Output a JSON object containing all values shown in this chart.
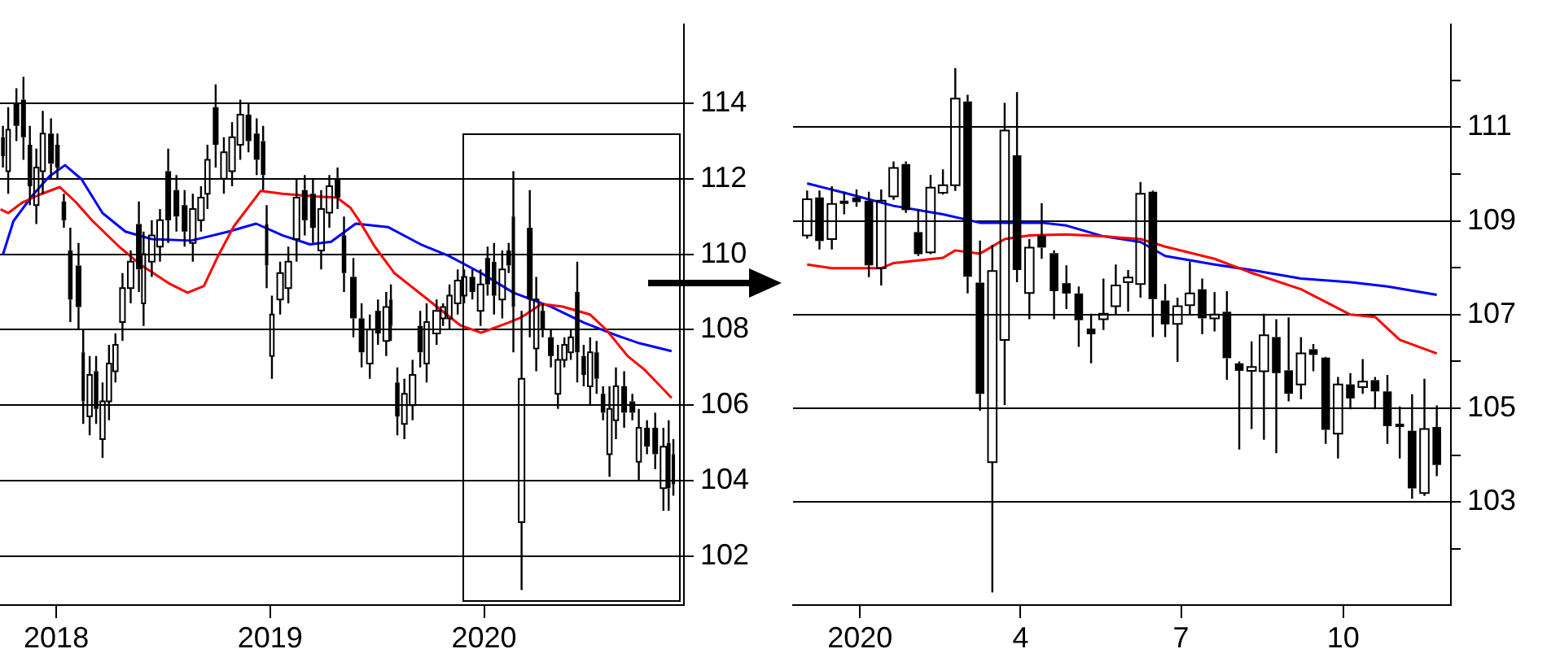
{
  "chart_data": [
    {
      "type": "candlestick",
      "color": "#000000",
      "grid": "y",
      "xlim": [
        "2017-09-27",
        "2020-12-07"
      ],
      "xticks": [
        {
          "value": "2018-01-01",
          "label": "2018"
        },
        {
          "value": "2019-01-01",
          "label": "2019"
        },
        {
          "value": "2020-01-01",
          "label": "2020"
        }
      ],
      "ylim": [
        100.7,
        116.1
      ],
      "yticks": [
        102,
        104,
        106,
        108,
        110,
        112,
        114
      ],
      "x": [
        "2017-10-02",
        "2017-10-11",
        "2017-10-25",
        "2017-11-06",
        "2017-11-17",
        "2017-11-28",
        "2017-12-09",
        "2017-12-23",
        "2018-01-03",
        "2018-01-14",
        "2018-01-25",
        "2018-02-08",
        "2018-02-16",
        "2018-02-27",
        "2018-03-10",
        "2018-03-21",
        "2018-04-01",
        "2018-04-12",
        "2018-04-24",
        "2018-05-08",
        "2018-05-22",
        "2018-05-30",
        "2018-06-13",
        "2018-06-27",
        "2018-07-11",
        "2018-07-25",
        "2018-08-08",
        "2018-08-22",
        "2018-09-05",
        "2018-09-16",
        "2018-09-30",
        "2018-10-14",
        "2018-10-28",
        "2018-11-11",
        "2018-11-25",
        "2018-12-09",
        "2018-12-20",
        "2018-12-26",
        "2019-01-04",
        "2019-01-18",
        "2019-02-01",
        "2019-02-15",
        "2019-03-01",
        "2019-03-15",
        "2019-03-29",
        "2019-04-12",
        "2019-04-26",
        "2019-05-07",
        "2019-05-23",
        "2019-06-06",
        "2019-06-20",
        "2019-07-04",
        "2019-07-18",
        "2019-07-26",
        "2019-08-06",
        "2019-08-18",
        "2019-09-01",
        "2019-09-14",
        "2019-09-25",
        "2019-10-12",
        "2019-10-23",
        "2019-11-03",
        "2019-11-17",
        "2019-11-28",
        "2019-12-12",
        "2019-12-26",
        "2020-01-07",
        "2020-01-18",
        "2020-02-01",
        "2020-02-12",
        "2020-02-20",
        "2020-03-05",
        "2020-03-19",
        "2020-03-30",
        "2020-04-10",
        "2020-04-24",
        "2020-05-06",
        "2020-05-17",
        "2020-05-28",
        "2020-06-08",
        "2020-06-19",
        "2020-06-30",
        "2020-07-11",
        "2020-07-22",
        "2020-08-02",
        "2020-08-13",
        "2020-08-27",
        "2020-09-10",
        "2020-09-21",
        "2020-10-05",
        "2020-10-19",
        "2020-11-02",
        "2020-11-11",
        "2020-11-19"
      ],
      "ohlc": [
        [
          113.1,
          113.4,
          112.3,
          112.6
        ],
        [
          112.2,
          113.9,
          111.6,
          113.3
        ],
        [
          114.0,
          114.4,
          113.0,
          113.4
        ],
        [
          114.1,
          114.7,
          112.5,
          113.1
        ],
        [
          112.9,
          113.4,
          111.3,
          111.8
        ],
        [
          111.3,
          112.8,
          110.8,
          112.3
        ],
        [
          112.2,
          113.8,
          111.6,
          113.2
        ],
        [
          113.2,
          113.6,
          112.0,
          112.4
        ],
        [
          112.9,
          113.2,
          112.0,
          112.3
        ],
        [
          111.4,
          111.6,
          110.7,
          110.9
        ],
        [
          110.1,
          110.7,
          108.2,
          108.8
        ],
        [
          109.7,
          110.3,
          108.0,
          108.6
        ],
        [
          107.4,
          108.0,
          105.5,
          106.1
        ],
        [
          105.7,
          107.3,
          105.2,
          106.8
        ],
        [
          106.9,
          107.3,
          105.5,
          105.9
        ],
        [
          105.1,
          106.6,
          104.6,
          106.1
        ],
        [
          106.1,
          107.6,
          105.6,
          107.1
        ],
        [
          106.9,
          107.9,
          106.6,
          107.6
        ],
        [
          108.2,
          109.5,
          107.7,
          109.1
        ],
        [
          109.1,
          110.1,
          108.7,
          109.8
        ],
        [
          110.8,
          111.4,
          109.0,
          109.6
        ],
        [
          108.7,
          110.6,
          108.1,
          110.0
        ],
        [
          109.8,
          110.9,
          109.4,
          110.5
        ],
        [
          110.2,
          111.2,
          109.8,
          110.9
        ],
        [
          112.2,
          112.8,
          110.3,
          110.9
        ],
        [
          111.7,
          112.1,
          110.6,
          111.0
        ],
        [
          111.3,
          111.7,
          110.2,
          110.6
        ],
        [
          110.3,
          111.6,
          109.8,
          111.2
        ],
        [
          110.9,
          111.8,
          110.6,
          111.5
        ],
        [
          111.6,
          112.9,
          111.2,
          112.5
        ],
        [
          113.9,
          114.5,
          112.3,
          112.9
        ],
        [
          112.0,
          113.1,
          111.6,
          112.7
        ],
        [
          112.2,
          113.5,
          111.8,
          113.1
        ],
        [
          112.9,
          114.1,
          112.5,
          113.7
        ],
        [
          113.7,
          114.0,
          112.7,
          113.0
        ],
        [
          113.2,
          113.6,
          112.1,
          112.5
        ],
        [
          113.0,
          113.4,
          111.7,
          112.1
        ],
        [
          110.8,
          111.3,
          109.1,
          109.7
        ],
        [
          107.3,
          108.9,
          106.7,
          108.4
        ],
        [
          108.8,
          109.8,
          108.4,
          109.5
        ],
        [
          109.1,
          110.2,
          108.7,
          109.8
        ],
        [
          110.4,
          112.0,
          109.8,
          111.5
        ],
        [
          111.7,
          112.1,
          110.5,
          110.9
        ],
        [
          111.6,
          112.0,
          110.3,
          110.7
        ],
        [
          110.1,
          111.7,
          109.6,
          111.2
        ],
        [
          111.1,
          112.1,
          110.7,
          111.8
        ],
        [
          112.0,
          112.3,
          111.2,
          111.5
        ],
        [
          110.5,
          111.0,
          109.0,
          109.5
        ],
        [
          109.4,
          109.9,
          107.8,
          108.3
        ],
        [
          108.3,
          108.7,
          107.0,
          107.4
        ],
        [
          107.1,
          108.4,
          106.7,
          108.0
        ],
        [
          108.5,
          108.8,
          107.6,
          107.9
        ],
        [
          107.7,
          109.0,
          107.3,
          108.6
        ],
        [
          108.8,
          109.2,
          107.7,
          108.1
        ],
        [
          106.6,
          107.0,
          105.2,
          105.7
        ],
        [
          105.5,
          106.7,
          105.1,
          106.3
        ],
        [
          106.0,
          107.2,
          105.6,
          106.8
        ],
        [
          108.1,
          108.5,
          107.0,
          107.4
        ],
        [
          107.1,
          108.7,
          106.6,
          108.2
        ],
        [
          107.9,
          108.8,
          107.6,
          108.5
        ],
        [
          108.3,
          108.7,
          108.1,
          108.6
        ],
        [
          108.3,
          109.2,
          108.0,
          108.9
        ],
        [
          108.7,
          109.6,
          108.4,
          109.3
        ],
        [
          108.9,
          109.6,
          108.7,
          109.4
        ],
        [
          109.4,
          109.6,
          108.8,
          109.0
        ],
        [
          108.5,
          109.6,
          108.1,
          109.2
        ],
        [
          109.9,
          110.2,
          108.9,
          109.2
        ],
        [
          109.8,
          110.3,
          108.4,
          108.9
        ],
        [
          108.8,
          110.1,
          108.3,
          109.6
        ],
        [
          110.1,
          110.3,
          109.5,
          109.7
        ],
        [
          111.0,
          112.2,
          107.4,
          108.6
        ],
        [
          102.9,
          108.5,
          101.1,
          106.7
        ],
        [
          110.7,
          111.7,
          107.8,
          108.8
        ],
        [
          107.5,
          109.4,
          106.9,
          108.8
        ],
        [
          108.5,
          108.7,
          107.8,
          108.0
        ],
        [
          107.8,
          108.0,
          107.0,
          107.3
        ],
        [
          106.3,
          107.6,
          105.9,
          107.2
        ],
        [
          107.2,
          107.8,
          107.0,
          107.6
        ],
        [
          107.4,
          108.0,
          107.2,
          107.8
        ],
        [
          109.0,
          109.8,
          106.6,
          107.4
        ],
        [
          107.3,
          107.6,
          106.5,
          106.8
        ],
        [
          106.5,
          107.8,
          106.0,
          107.4
        ],
        [
          107.4,
          107.7,
          106.3,
          106.7
        ],
        [
          106.3,
          106.5,
          105.6,
          105.8
        ],
        [
          104.7,
          106.5,
          104.1,
          105.9
        ],
        [
          105.6,
          107.0,
          105.1,
          106.5
        ],
        [
          106.5,
          106.9,
          105.4,
          105.8
        ],
        [
          106.1,
          106.3,
          105.6,
          105.8
        ],
        [
          104.5,
          105.9,
          104.0,
          105.4
        ],
        [
          105.4,
          105.6,
          104.7,
          104.9
        ],
        [
          105.4,
          105.8,
          104.3,
          104.7
        ],
        [
          103.8,
          105.4,
          103.2,
          104.9
        ],
        [
          105.0,
          105.6,
          103.2,
          103.8
        ],
        [
          104.7,
          105.1,
          103.6,
          103.9
        ]
      ],
      "series": [
        {
          "type": "line",
          "color": "#ff0000",
          "x": [
            "2017-09-28",
            "2017-10-11",
            "2017-11-04",
            "2017-12-02",
            "2018-01-07",
            "2018-02-04",
            "2018-03-04",
            "2018-04-19",
            "2018-05-26",
            "2018-07-12",
            "2018-08-13",
            "2018-09-10",
            "2018-10-03",
            "2018-10-31",
            "2018-12-16",
            "2019-01-22",
            "2019-03-19",
            "2019-04-25",
            "2019-05-18",
            "2019-06-01",
            "2019-06-29",
            "2019-08-01",
            "2019-09-26",
            "2019-11-21",
            "2019-12-27",
            "2020-02-12",
            "2020-03-05",
            "2020-04-08",
            "2020-05-14",
            "2020-06-30",
            "2020-07-28",
            "2020-09-02",
            "2020-09-30",
            "2020-11-16"
          ],
          "values": [
            111.19,
            111.09,
            111.37,
            111.57,
            111.78,
            111.37,
            110.88,
            110.19,
            109.71,
            109.23,
            108.98,
            109.16,
            109.92,
            110.74,
            111.68,
            111.6,
            111.53,
            111.5,
            111.23,
            110.91,
            110.19,
            109.5,
            108.81,
            108.12,
            107.92,
            108.19,
            108.33,
            108.68,
            108.61,
            108.4,
            107.99,
            107.3,
            106.95,
            106.19
          ]
        },
        {
          "type": "line",
          "color": "#0000ff",
          "x": [
            "2017-10-02",
            "2017-10-20",
            "2017-11-22",
            "2017-12-20",
            "2018-01-16",
            "2018-02-13",
            "2018-03-21",
            "2018-04-29",
            "2018-06-13",
            "2018-08-19",
            "2018-10-22",
            "2018-12-08",
            "2019-01-22",
            "2019-03-10",
            "2019-04-15",
            "2019-05-27",
            "2019-07-21",
            "2019-09-15",
            "2019-11-01",
            "2019-12-27",
            "2020-02-20",
            "2020-04-24",
            "2020-06-19",
            "2020-08-14",
            "2020-09-22",
            "2020-11-16"
          ],
          "values": [
            109.99,
            110.88,
            111.57,
            112.06,
            112.36,
            111.99,
            111.09,
            110.6,
            110.4,
            110.36,
            110.6,
            110.81,
            110.5,
            110.26,
            110.33,
            110.81,
            110.72,
            110.26,
            109.96,
            109.5,
            108.98,
            108.61,
            108.19,
            107.85,
            107.64,
            107.43
          ]
        }
      ]
    },
    {
      "type": "candlestick",
      "color": "#000000",
      "grid": "y",
      "xlim": [
        "2019-11-24",
        "2020-12-01"
      ],
      "xticks": [
        {
          "value": "2020-01-01",
          "label": "2020"
        },
        {
          "value": "2020-04-01",
          "label": "4"
        },
        {
          "value": "2020-07-01",
          "label": "7"
        },
        {
          "value": "2020-10-01",
          "label": "10"
        }
      ],
      "ylim": [
        100.8,
        113.2
      ],
      "yticks": [
        {
          "value": 102,
          "label": null
        },
        103,
        {
          "value": 104,
          "label": null
        },
        105,
        {
          "value": 106,
          "label": null
        },
        107,
        {
          "value": 108,
          "label": null
        },
        109,
        {
          "value": 110,
          "label": null
        },
        111,
        {
          "value": 112,
          "label": null
        }
      ],
      "x": [
        "2019-12-02",
        "2019-12-09",
        "2019-12-16",
        "2019-12-23",
        "2019-12-30",
        "2020-01-06",
        "2020-01-13",
        "2020-01-20",
        "2020-01-27",
        "2020-02-03",
        "2020-02-10",
        "2020-02-17",
        "2020-02-24",
        "2020-03-02",
        "2020-03-09",
        "2020-03-16",
        "2020-03-23",
        "2020-03-30",
        "2020-04-06",
        "2020-04-13",
        "2020-04-20",
        "2020-04-27",
        "2020-05-04",
        "2020-05-11",
        "2020-05-18",
        "2020-05-25",
        "2020-06-01",
        "2020-06-08",
        "2020-06-15",
        "2020-06-22",
        "2020-06-29",
        "2020-07-06",
        "2020-07-13",
        "2020-07-20",
        "2020-07-27",
        "2020-08-03",
        "2020-08-10",
        "2020-08-17",
        "2020-08-24",
        "2020-08-31",
        "2020-09-07",
        "2020-09-14",
        "2020-09-21",
        "2020-09-28",
        "2020-10-05",
        "2020-10-12",
        "2020-10-19",
        "2020-10-26",
        "2020-11-02",
        "2020-11-09",
        "2020-11-16",
        "2020-11-23"
      ],
      "ohlc": [
        [
          108.69,
          109.65,
          108.62,
          109.46
        ],
        [
          109.5,
          109.65,
          108.39,
          108.57
        ],
        [
          108.61,
          109.74,
          108.39,
          109.36
        ],
        [
          109.43,
          109.62,
          109.14,
          109.36
        ],
        [
          109.5,
          109.67,
          109.3,
          109.4
        ],
        [
          109.43,
          109.62,
          107.8,
          108.05
        ],
        [
          107.99,
          109.67,
          107.62,
          109.43
        ],
        [
          109.52,
          110.27,
          109.45,
          110.13
        ],
        [
          110.21,
          110.27,
          109.17,
          109.23
        ],
        [
          108.76,
          109.24,
          108.25,
          108.29
        ],
        [
          108.33,
          109.98,
          108.29,
          109.71
        ],
        [
          109.6,
          110.1,
          109.56,
          109.76
        ],
        [
          109.76,
          112.26,
          109.64,
          111.61
        ],
        [
          111.55,
          111.69,
          107.45,
          107.81
        ],
        [
          107.68,
          108.58,
          104.95,
          105.31
        ],
        [
          103.85,
          108.49,
          101.07,
          107.93
        ],
        [
          106.46,
          111.52,
          105.07,
          110.93
        ],
        [
          110.4,
          111.75,
          107.69,
          107.95
        ],
        [
          107.46,
          108.61,
          106.9,
          108.43
        ],
        [
          108.69,
          109.38,
          108.19,
          108.43
        ],
        [
          108.31,
          108.37,
          106.9,
          107.5
        ],
        [
          107.67,
          108.05,
          107.12,
          107.45
        ],
        [
          107.45,
          107.6,
          106.31,
          106.88
        ],
        [
          106.7,
          107.02,
          105.96,
          106.58
        ],
        [
          106.9,
          107.77,
          106.67,
          107.02
        ],
        [
          107.18,
          108.07,
          107.0,
          107.62
        ],
        [
          107.69,
          107.95,
          107.06,
          107.79
        ],
        [
          107.65,
          109.83,
          107.36,
          109.58
        ],
        [
          109.62,
          109.65,
          106.52,
          107.33
        ],
        [
          107.3,
          107.65,
          106.52,
          106.79
        ],
        [
          106.8,
          107.36,
          105.99,
          107.18
        ],
        [
          107.2,
          108.13,
          107.0,
          107.45
        ],
        [
          107.54,
          107.77,
          106.58,
          106.92
        ],
        [
          106.92,
          107.48,
          106.64,
          107.0
        ],
        [
          107.06,
          107.5,
          105.61,
          106.07
        ],
        [
          105.96,
          106.0,
          104.12,
          105.8
        ],
        [
          105.8,
          106.43,
          104.56,
          105.88
        ],
        [
          105.79,
          107.02,
          104.33,
          106.56
        ],
        [
          106.52,
          106.9,
          104.04,
          105.75
        ],
        [
          105.81,
          106.94,
          105.15,
          105.31
        ],
        [
          105.51,
          106.52,
          105.19,
          106.17
        ],
        [
          106.26,
          106.37,
          105.79,
          106.14
        ],
        [
          106.08,
          106.1,
          104.24,
          104.54
        ],
        [
          104.46,
          105.67,
          103.93,
          105.51
        ],
        [
          105.51,
          105.75,
          104.98,
          105.21
        ],
        [
          105.45,
          106.05,
          105.31,
          105.57
        ],
        [
          105.6,
          105.67,
          104.98,
          105.36
        ],
        [
          105.36,
          105.71,
          104.24,
          104.62
        ],
        [
          104.67,
          105.04,
          103.93,
          104.6
        ],
        [
          104.52,
          105.3,
          103.07,
          103.29
        ],
        [
          103.19,
          105.63,
          103.13,
          104.56
        ],
        [
          104.6,
          105.06,
          103.55,
          103.79
        ]
      ],
      "series": [
        {
          "type": "line",
          "color": "#ff0000",
          "x": [
            "2019-12-02",
            "2019-12-16",
            "2020-01-13",
            "2020-01-20",
            "2020-02-17",
            "2020-02-24",
            "2020-03-09",
            "2020-03-23",
            "2020-04-06",
            "2020-04-27",
            "2020-05-18",
            "2020-06-08",
            "2020-06-22",
            "2020-07-20",
            "2020-08-10",
            "2020-09-07",
            "2020-10-05",
            "2020-10-19",
            "2020-11-02",
            "2020-11-23"
          ],
          "values": [
            108.07,
            107.99,
            107.99,
            108.1,
            108.21,
            108.37,
            108.3,
            108.61,
            108.69,
            108.71,
            108.67,
            108.61,
            108.45,
            108.19,
            107.89,
            107.54,
            107.0,
            106.95,
            106.46,
            106.17
          ]
        },
        {
          "type": "line",
          "color": "#0000ff",
          "x": [
            "2019-12-02",
            "2019-12-23",
            "2020-01-20",
            "2020-02-17",
            "2020-03-09",
            "2020-04-13",
            "2020-04-27",
            "2020-05-18",
            "2020-06-08",
            "2020-06-22",
            "2020-07-20",
            "2020-08-10",
            "2020-09-07",
            "2020-10-05",
            "2020-10-26",
            "2020-11-23"
          ],
          "values": [
            109.8,
            109.6,
            109.32,
            109.14,
            108.96,
            108.96,
            108.9,
            108.67,
            108.55,
            108.25,
            108.07,
            107.95,
            107.77,
            107.69,
            107.6,
            107.42
          ]
        }
      ]
    }
  ]
}
